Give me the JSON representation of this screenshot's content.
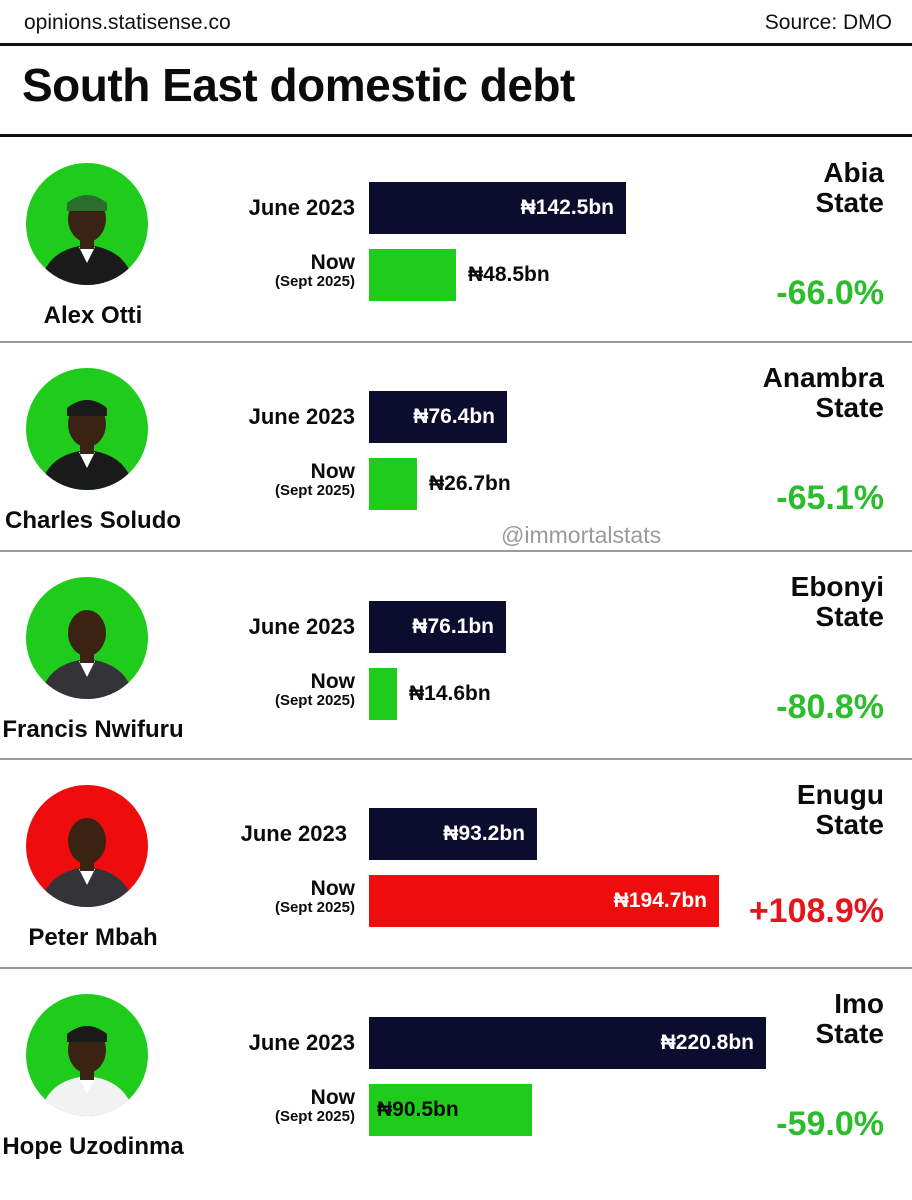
{
  "header": {
    "site": "opinions.statisense.co",
    "source": "Source: DMO"
  },
  "title": "South East domestic debt",
  "watermark": "@immortalstats",
  "labels": {
    "june": "June 2023",
    "now": "Now",
    "now_sub": "(Sept 2025)"
  },
  "colors": {
    "june_bar": "#0b0c2e",
    "decrease": "#1fcc1c",
    "increase": "#ee0c0c",
    "pct_green": "#2bbd2b",
    "pct_red": "#e4161b"
  },
  "chart_data": {
    "type": "bar",
    "title": "South East domestic debt",
    "unit": "₦ billion",
    "series": [
      {
        "name": "June 2023",
        "values": [
          142.5,
          76.4,
          76.1,
          93.2,
          220.8
        ]
      },
      {
        "name": "Now (Sept 2025)",
        "values": [
          48.5,
          26.7,
          14.6,
          194.7,
          90.5
        ]
      }
    ],
    "categories": [
      "Abia State",
      "Anambra State",
      "Ebonyi State",
      "Enugu State",
      "Imo State"
    ],
    "states": [
      {
        "state_l1": "Abia",
        "state_l2": "State",
        "governor": "Alex Otti",
        "june_value": 142.5,
        "june_label": "₦142.5bn",
        "now_value": 48.5,
        "now_label": "₦48.5bn",
        "change": "-66.0%",
        "direction": "decrease"
      },
      {
        "state_l1": "Anambra",
        "state_l2": "State",
        "governor": "Charles Soludo",
        "june_value": 76.4,
        "june_label": "₦76.4bn",
        "now_value": 26.7,
        "now_label": "₦26.7bn",
        "change": "-65.1%",
        "direction": "decrease"
      },
      {
        "state_l1": "Ebonyi",
        "state_l2": "State",
        "governor": "Francis Nwifuru",
        "june_value": 76.1,
        "june_label": "₦76.1bn",
        "now_value": 14.6,
        "now_label": "₦14.6bn",
        "change": "-80.8%",
        "direction": "decrease"
      },
      {
        "state_l1": "Enugu",
        "state_l2": "State",
        "governor": "Peter Mbah",
        "june_value": 93.2,
        "june_label": "₦93.2bn",
        "now_value": 194.7,
        "now_label": "₦194.7bn",
        "change": "+108.9%",
        "direction": "increase"
      },
      {
        "state_l1": "Imo",
        "state_l2": "State",
        "governor": "Hope Uzodinma",
        "june_value": 220.8,
        "june_label": "₦220.8bn",
        "now_value": 90.5,
        "now_label": "₦90.5bn",
        "change": "-59.0%",
        "direction": "decrease"
      }
    ]
  }
}
